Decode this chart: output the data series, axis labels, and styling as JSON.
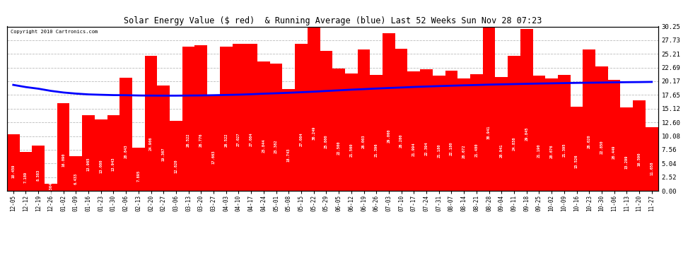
{
  "title": "Solar Energy Value ($ red)  & Running Average (blue) Last 52 Weeks Sun Nov 28 07:23",
  "copyright": "Copyright 2010 Cartronics.com",
  "bar_color": "#ff0000",
  "line_color": "#0000ff",
  "background_color": "#ffffff",
  "grid_color": "#cccccc",
  "yticks": [
    0.0,
    2.52,
    5.04,
    7.56,
    10.08,
    12.6,
    15.12,
    17.65,
    20.17,
    22.69,
    25.21,
    27.73,
    30.25
  ],
  "ylim": [
    0,
    30.25
  ],
  "categories": [
    "12-05",
    "12-12",
    "12-19",
    "12-26",
    "01-02",
    "01-09",
    "01-16",
    "01-23",
    "01-30",
    "02-06",
    "02-13",
    "02-20",
    "02-27",
    "03-06",
    "03-13",
    "03-20",
    "03-27",
    "04-03",
    "04-10",
    "04-17",
    "04-24",
    "05-01",
    "05-08",
    "05-15",
    "05-22",
    "05-29",
    "06-05",
    "06-12",
    "06-19",
    "06-26",
    "07-03",
    "07-10",
    "07-17",
    "07-24",
    "07-31",
    "08-07",
    "08-14",
    "08-21",
    "08-28",
    "09-04",
    "09-11",
    "09-18",
    "09-25",
    "10-02",
    "10-09",
    "10-16",
    "10-23",
    "10-30",
    "11-06",
    "11-13",
    "11-20",
    "11-27"
  ],
  "values": [
    10.459,
    7.189,
    8.383,
    1.364,
    16.09,
    6.433,
    13.965,
    13.08,
    13.943,
    20.843,
    7.895,
    24.906,
    19.367,
    12.82,
    26.522,
    26.776,
    17.663,
    26.522,
    27.027,
    27.084,
    23.844,
    23.382,
    18.743,
    27.084,
    30.249,
    25.8,
    22.5,
    21.56,
    26.003,
    21.396,
    29.0,
    26.2,
    21.994,
    22.394,
    21.18,
    22.18,
    20.672,
    21.48,
    30.941,
    20.941,
    24.838,
    29.845,
    21.19,
    20.676,
    21.395,
    15.526,
    26.02,
    22.85,
    20.449,
    15.299,
    16.59,
    11.658
  ],
  "values_labels": [
    "10.459",
    "7.189",
    "8.383",
    "1.364",
    "16.090",
    "6.433",
    "13.965",
    "13.080",
    "13.943",
    "20.843",
    "7.895",
    "24.906",
    "19.367",
    "12.820",
    "26.522",
    "26.776",
    "17.663",
    "26.522",
    "27.027",
    "27.084",
    "23.844",
    "23.382",
    "18.743",
    "27.084",
    "30.249",
    "25.800",
    "22.500",
    "21.560",
    "26.003",
    "21.396",
    "29.000",
    "26.200",
    "21.994",
    "22.394",
    "21.180",
    "22.180",
    "20.672",
    "21.480",
    "30.941",
    "20.941",
    "24.838",
    "29.845",
    "21.190",
    "20.676",
    "21.395",
    "15.526",
    "26.020",
    "22.850",
    "20.449",
    "15.299",
    "16.590",
    "11.658"
  ],
  "running_avg": [
    19.5,
    19.1,
    18.8,
    18.4,
    18.1,
    17.9,
    17.75,
    17.68,
    17.62,
    17.6,
    17.55,
    17.53,
    17.52,
    17.52,
    17.54,
    17.56,
    17.6,
    17.65,
    17.7,
    17.78,
    17.88,
    17.96,
    18.05,
    18.15,
    18.25,
    18.38,
    18.5,
    18.62,
    18.72,
    18.83,
    18.93,
    19.02,
    19.12,
    19.2,
    19.28,
    19.35,
    19.42,
    19.48,
    19.55,
    19.6,
    19.65,
    19.7,
    19.75,
    19.79,
    19.83,
    19.87,
    19.9,
    19.93,
    19.97,
    20.0,
    20.02,
    20.05
  ]
}
